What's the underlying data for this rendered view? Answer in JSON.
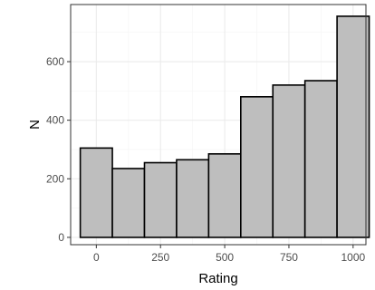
{
  "chart_data": {
    "type": "bar",
    "subtype": "histogram",
    "title": "",
    "xlabel": "Rating",
    "ylabel": "N",
    "xlim": [
      -100,
      1050
    ],
    "ylim": [
      -25,
      795
    ],
    "x_ticks": [
      0,
      250,
      500,
      750,
      1000
    ],
    "y_ticks": [
      0,
      200,
      400,
      600
    ],
    "x_tick_labels": [
      "0",
      "250",
      "500",
      "750",
      "1000"
    ],
    "y_tick_labels": [
      "0",
      "200",
      "400",
      "600"
    ],
    "bins": [
      {
        "x0": -62.5,
        "x1": 62.5,
        "value": 305
      },
      {
        "x0": 62.5,
        "x1": 187.5,
        "value": 235
      },
      {
        "x0": 187.5,
        "x1": 312.5,
        "value": 255
      },
      {
        "x0": 312.5,
        "x1": 437.5,
        "value": 265
      },
      {
        "x0": 437.5,
        "x1": 562.5,
        "value": 285
      },
      {
        "x0": 562.5,
        "x1": 687.5,
        "value": 480
      },
      {
        "x0": 687.5,
        "x1": 812.5,
        "value": 520
      },
      {
        "x0": 812.5,
        "x1": 937.5,
        "value": 535
      },
      {
        "x0": 937.5,
        "x1": 1062.5,
        "value": 755
      }
    ],
    "grid": true,
    "legend": "none",
    "colors": {
      "bar_fill": "#bebebe",
      "bar_stroke": "#000000",
      "grid_major": "#ebebeb",
      "grid_minor": "#f5f5f5",
      "panel_border": "#333333",
      "tick_label": "#4d4d4d"
    }
  }
}
